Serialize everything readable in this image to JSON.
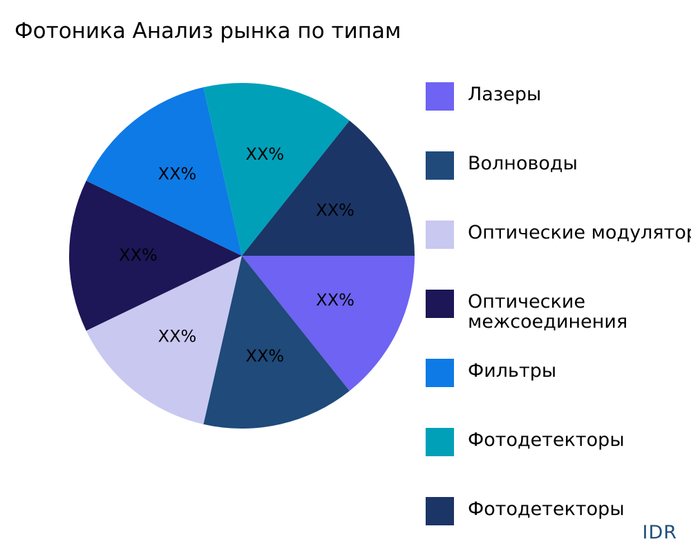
{
  "chart_data": {
    "type": "pie",
    "title": "Фотоника Анализ рынка по типам",
    "slices": [
      {
        "name": "Лазеры",
        "value": 14.2857,
        "label": "XX%",
        "color": "#6e63f2"
      },
      {
        "name": "Волноводы",
        "value": 14.2857,
        "label": "XX%",
        "color": "#1f4a7a"
      },
      {
        "name": "Оптические модуляторы",
        "value": 14.2857,
        "label": "XX%",
        "color": "#c9c8f0"
      },
      {
        "name": "Оптические межсоединения",
        "value": 14.2857,
        "label": "XX%",
        "color": "#1d1657"
      },
      {
        "name": "Фильтры",
        "value": 14.2857,
        "label": "XX%",
        "color": "#0e7ae6"
      },
      {
        "name": "Фотодетекторы",
        "value": 14.2857,
        "label": "XX%",
        "color": "#01a0b9"
      },
      {
        "name": "Фотодетекторы",
        "value": 14.2857,
        "label": "XX%",
        "color": "#1b3566"
      }
    ],
    "legend_position": "right"
  },
  "brand": "IDR"
}
